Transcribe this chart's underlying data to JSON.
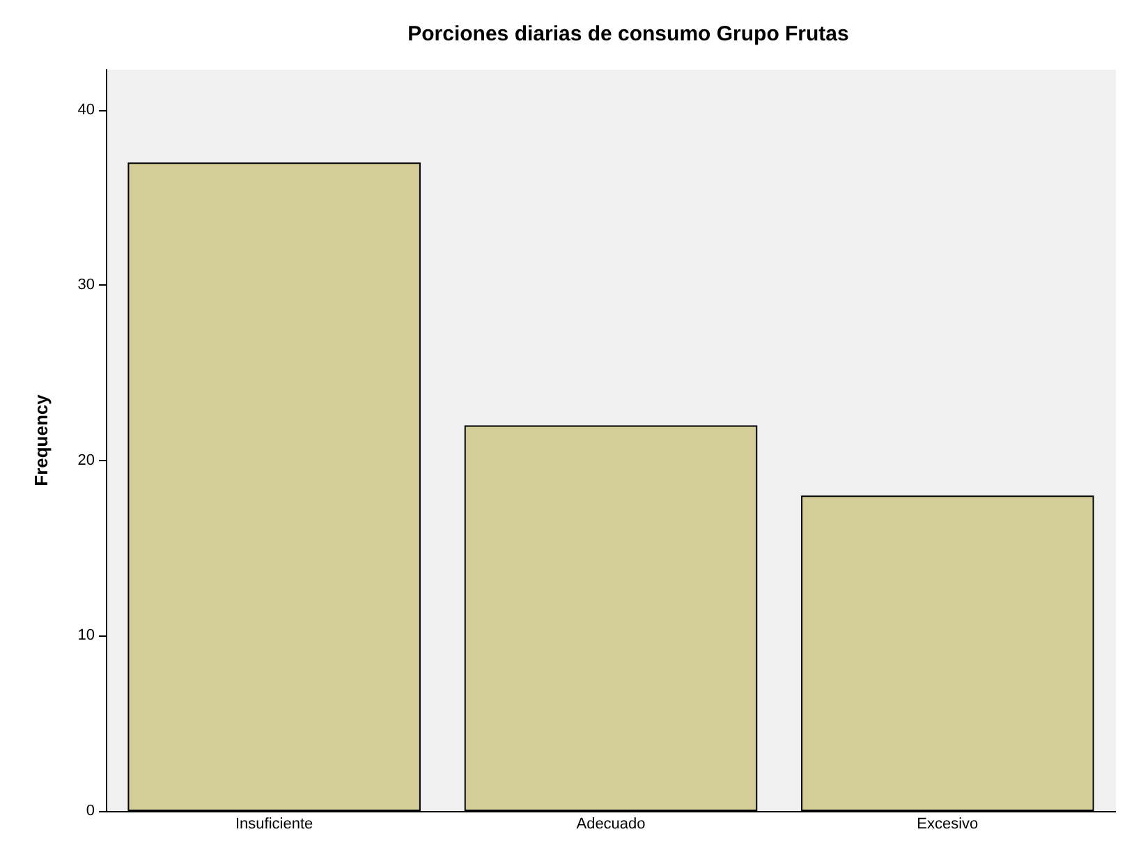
{
  "chart_data": {
    "type": "bar",
    "title": "Porciones diarias de consumo Grupo Frutas",
    "ylabel": "Frequency",
    "categories": [
      "Insuficiente",
      "Adecuado",
      "Excesivo"
    ],
    "values": [
      37,
      22,
      18
    ],
    "color": "#d3ce97",
    "ylim": [
      0,
      42.3
    ],
    "yticks": [
      0,
      10,
      20,
      30,
      40
    ],
    "grid": false
  }
}
